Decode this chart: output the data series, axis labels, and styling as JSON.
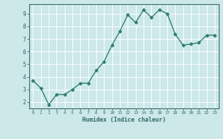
{
  "x": [
    0,
    1,
    2,
    3,
    4,
    5,
    6,
    7,
    8,
    9,
    10,
    11,
    12,
    13,
    14,
    15,
    16,
    17,
    18,
    19,
    20,
    21,
    22,
    23
  ],
  "y": [
    3.7,
    3.1,
    1.8,
    2.6,
    2.6,
    3.0,
    3.5,
    3.5,
    4.5,
    5.2,
    6.5,
    7.6,
    8.9,
    8.3,
    9.3,
    8.7,
    9.3,
    9.0,
    7.4,
    6.5,
    6.6,
    6.7,
    7.3,
    7.3
  ],
  "xlabel": "Humidex (Indice chaleur)",
  "ylim": [
    1.5,
    9.75
  ],
  "xlim": [
    -0.5,
    23.5
  ],
  "line_color": "#2e7d6e",
  "marker_color": "#2e7d6e",
  "bg_color": "#cce8e8",
  "grid_color": "#ffffff",
  "axis_color": "#336666",
  "tick_color": "#336666",
  "label_color": "#336666",
  "yticks": [
    2,
    3,
    4,
    5,
    6,
    7,
    8,
    9
  ],
  "xticks": [
    0,
    1,
    2,
    3,
    4,
    5,
    6,
    7,
    8,
    9,
    10,
    11,
    12,
    13,
    14,
    15,
    16,
    17,
    18,
    19,
    20,
    21,
    22,
    23
  ]
}
